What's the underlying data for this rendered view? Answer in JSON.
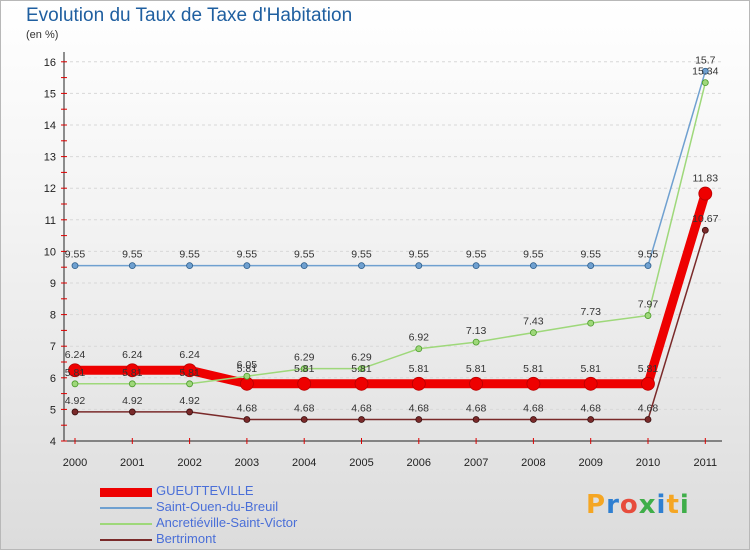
{
  "chart_data": {
    "type": "line",
    "title": "Evolution du Taux de Taxe d'Habitation",
    "subtitle": "(en %)",
    "x": [
      "2000",
      "2001",
      "2002",
      "2003",
      "2004",
      "2005",
      "2006",
      "2007",
      "2008",
      "2009",
      "2010",
      "2011"
    ],
    "ylim": [
      4,
      16
    ],
    "yticks": [
      "4",
      "5",
      "6",
      "7",
      "8",
      "9",
      "10",
      "11",
      "12",
      "13",
      "14",
      "15",
      "16"
    ],
    "series": [
      {
        "name": "GUEUTTEVILLE",
        "color": "#ee0000",
        "values": [
          6.24,
          6.24,
          6.24,
          5.81,
          5.81,
          5.81,
          5.81,
          5.81,
          5.81,
          5.81,
          5.81,
          11.83
        ],
        "labels": [
          "6.24",
          "6.24",
          "6.24",
          "5.81",
          "5.81",
          "5.81",
          "5.81",
          "5.81",
          "5.81",
          "5.81",
          "5.81",
          "11.83"
        ]
      },
      {
        "name": "Saint-Ouen-du-Breuil",
        "color": "#6fa0d0",
        "values": [
          9.55,
          9.55,
          9.55,
          9.55,
          9.55,
          9.55,
          9.55,
          9.55,
          9.55,
          9.55,
          9.55,
          15.7
        ],
        "labels": [
          "9.55",
          "9.55",
          "9.55",
          "9.55",
          "9.55",
          "9.55",
          "9.55",
          "9.55",
          "9.55",
          "9.55",
          "9.55",
          "15.7"
        ]
      },
      {
        "name": "Ancretiéville-Saint-Victor",
        "color": "#9ed87a",
        "values": [
          5.81,
          5.81,
          5.81,
          6.05,
          6.29,
          6.29,
          6.92,
          7.13,
          7.43,
          7.73,
          7.97,
          15.34
        ],
        "labels": [
          "5.81",
          "5.81",
          "5.81",
          "6.05",
          "6.29",
          "6.29",
          "6.92",
          "7.13",
          "7.43",
          "7.73",
          "7.97",
          "15.34"
        ]
      },
      {
        "name": "Bertrimont",
        "color": "#7a2a2a",
        "values": [
          4.92,
          4.92,
          4.92,
          4.68,
          4.68,
          4.68,
          4.68,
          4.68,
          4.68,
          4.68,
          4.68,
          10.67
        ],
        "labels": [
          "4.92",
          "4.92",
          "4.92",
          "4.68",
          "4.68",
          "4.68",
          "4.68",
          "4.68",
          "4.68",
          "4.68",
          "4.68",
          "10.67"
        ]
      }
    ]
  },
  "logo": {
    "text": "Proxiti"
  }
}
